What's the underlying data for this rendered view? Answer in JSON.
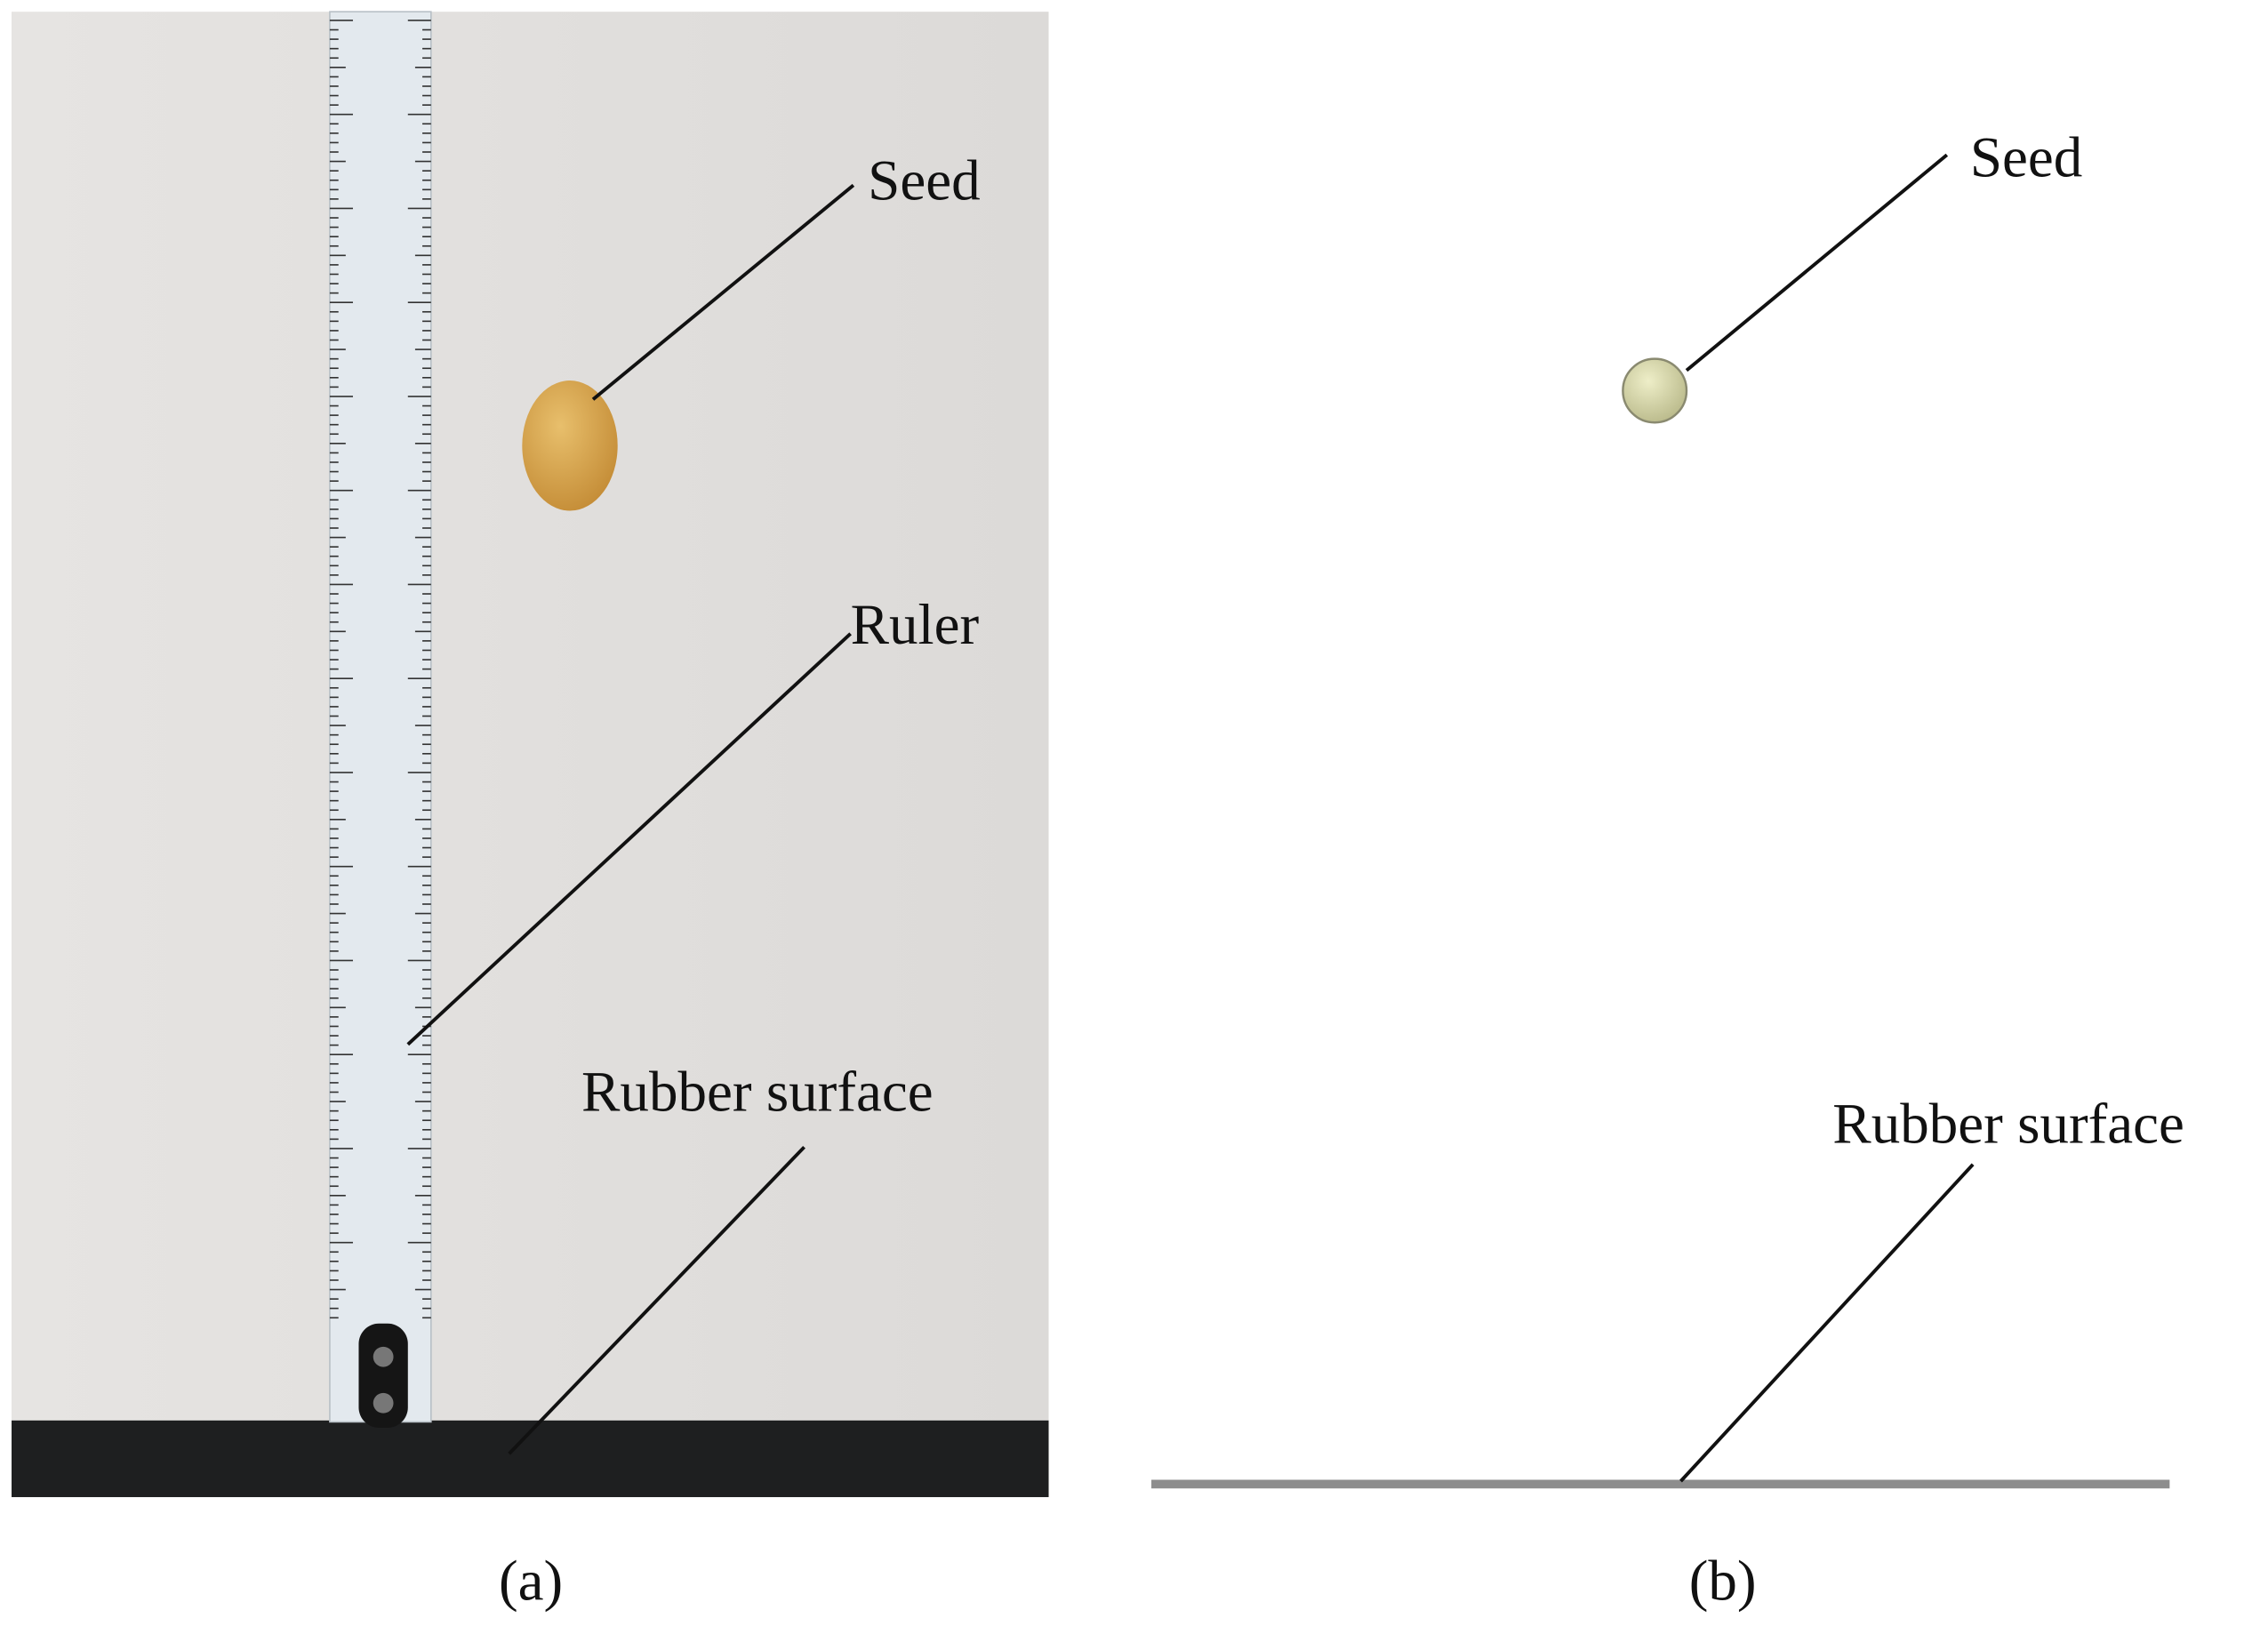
{
  "panels": [
    {
      "label": "(a)",
      "annotations": {
        "seed": "Seed",
        "ruler": "Ruler",
        "surface": "Rubber surface"
      }
    },
    {
      "label": "(b)",
      "annotations": {
        "seed": "Seed",
        "surface": "Rubber surface"
      }
    }
  ]
}
